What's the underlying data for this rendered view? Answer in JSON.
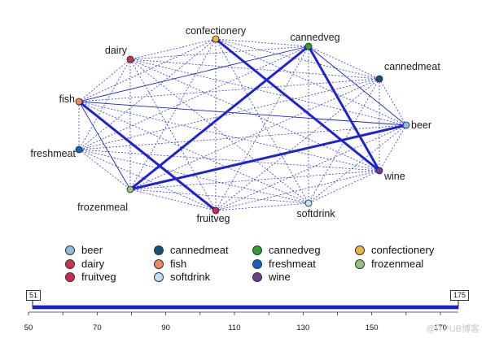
{
  "nodes": [
    {
      "id": "confectionery",
      "label": "confectionery",
      "color": "#f3b341"
    },
    {
      "id": "cannedveg",
      "label": "cannedveg",
      "color": "#2da02d"
    },
    {
      "id": "dairy",
      "label": "dairy",
      "color": "#c9354d"
    },
    {
      "id": "cannedmeat",
      "label": "cannedmeat",
      "color": "#11527e"
    },
    {
      "id": "fish",
      "label": "fish",
      "color": "#ec8a5c"
    },
    {
      "id": "beer",
      "label": "beer",
      "color": "#8fbcdc"
    },
    {
      "id": "freshmeat",
      "label": "freshmeat",
      "color": "#1263c4"
    },
    {
      "id": "wine",
      "label": "wine",
      "color": "#6a3d8e"
    },
    {
      "id": "frozenmeal",
      "label": "frozenmeal",
      "color": "#93c47d"
    },
    {
      "id": "fruitveg",
      "label": "fruitveg",
      "color": "#cc2952"
    },
    {
      "id": "softdrink",
      "label": "softdrink",
      "color": "#bfe1f5"
    }
  ],
  "strong_links": [
    [
      "confectionery",
      "wine"
    ],
    [
      "cannedveg",
      "frozenmeal"
    ],
    [
      "cannedveg",
      "wine"
    ],
    [
      "beer",
      "frozenmeal"
    ],
    [
      "fish",
      "fruitveg"
    ]
  ],
  "medium_links": [
    [
      "fish",
      "frozenmeal"
    ],
    [
      "cannedveg",
      "beer"
    ],
    [
      "cannedveg",
      "fish"
    ],
    [
      "beer",
      "fish"
    ]
  ],
  "weak_links_note": "all remaining node pairs drawn as thin dotted lines",
  "legend": [
    {
      "label": "beer",
      "color": "#8fbcdc"
    },
    {
      "label": "cannedmeat",
      "color": "#11527e"
    },
    {
      "label": "cannedveg",
      "color": "#2da02d"
    },
    {
      "label": "confectionery",
      "color": "#f3b341"
    },
    {
      "label": "dairy",
      "color": "#c9354d"
    },
    {
      "label": "fish",
      "color": "#ec8a5c"
    },
    {
      "label": "freshmeat",
      "color": "#1263c4"
    },
    {
      "label": "frozenmeal",
      "color": "#93c47d"
    },
    {
      "label": "fruitveg",
      "color": "#cc2952"
    },
    {
      "label": "softdrink",
      "color": "#bfe1f5"
    },
    {
      "label": "wine",
      "color": "#6a3d8e"
    }
  ],
  "slider": {
    "min_value": "51",
    "max_value": "175",
    "ticks": [
      "50",
      "70",
      "90",
      "110",
      "130",
      "150",
      "170"
    ]
  },
  "watermark": "@ITPUB博客",
  "colors": {
    "link": "#1c22d8"
  }
}
